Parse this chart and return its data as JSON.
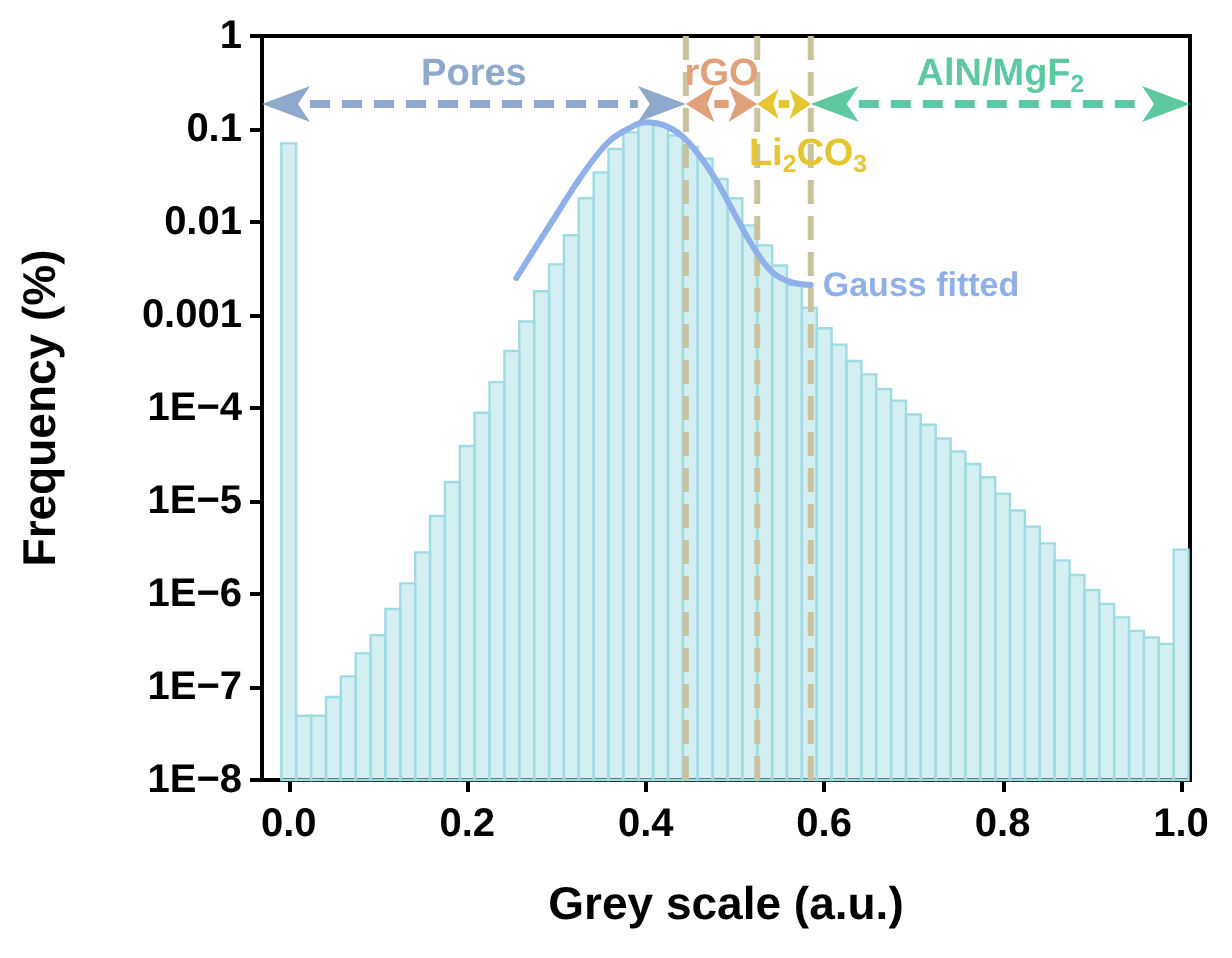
{
  "chart_data": {
    "type": "histogram",
    "xlabel": "Grey scale (a.u.)",
    "ylabel": "Frequency (%)",
    "xlim": [
      -0.03,
      1.01
    ],
    "xticks": [
      {
        "value": 0,
        "label": "0.0"
      },
      0.2,
      0.4,
      0.6,
      0.8,
      {
        "value": 1,
        "label": "1.0"
      }
    ],
    "ylim": [
      1e-08,
      1
    ],
    "yticks": [
      {
        "value": 1e-08,
        "label": "1E−8"
      },
      {
        "value": 1e-07,
        "label": "1E−7"
      },
      {
        "value": 1e-06,
        "label": "1E−6"
      },
      {
        "value": 1e-05,
        "label": "1E−5"
      },
      {
        "value": 0.0001,
        "label": "1E−4"
      },
      0.001,
      0.01,
      0.1,
      1
    ],
    "log": "y",
    "grid": false,
    "legend": false,
    "marker": "none",
    "series": [
      {
        "color": "#9fdbe3",
        "bins": [
          -0.0083,
          0.0083,
          0.025,
          0.0417,
          0.0583,
          0.075,
          0.0917,
          0.1083,
          0.125,
          0.1417,
          0.1583,
          0.175,
          0.1917,
          0.2083,
          0.225,
          0.2417,
          0.2583,
          0.275,
          0.2917,
          0.3083,
          0.325,
          0.3417,
          0.3583,
          0.375,
          0.3917,
          0.4083,
          0.425,
          0.4417,
          0.4583,
          0.475,
          0.4917,
          0.5083,
          0.525,
          0.5417,
          0.5583,
          0.575,
          0.5917,
          0.6083,
          0.625,
          0.6417,
          0.6583,
          0.675,
          0.6917,
          0.7083,
          0.725,
          0.7417,
          0.7583,
          0.775,
          0.7917,
          0.8083,
          0.825,
          0.8417,
          0.8583,
          0.875,
          0.8917,
          0.9083,
          0.925,
          0.9417,
          0.9583,
          0.975,
          0.9917,
          1.0083
        ],
        "values": [
          0.07,
          4.9e-08,
          4.9e-08,
          7.8e-08,
          1.3e-07,
          2.3e-07,
          3.6e-07,
          6.9e-07,
          1.3e-06,
          2.8e-06,
          6.9e-06,
          1.6e-05,
          3.9e-05,
          8.9e-05,
          0.00019,
          0.00041,
          0.00085,
          0.0018,
          0.0035,
          0.0072,
          0.018,
          0.034,
          0.061,
          0.092,
          0.118,
          0.11,
          0.085,
          0.064,
          0.048,
          0.029,
          0.018,
          0.0092,
          0.0056,
          0.0034,
          0.0021,
          0.0012,
          0.00072,
          0.00048,
          0.00032,
          0.00023,
          0.00016,
          0.00012,
          8.5e-05,
          6.6e-05,
          4.7e-05,
          3.4e-05,
          2.5e-05,
          1.8e-05,
          1.2e-05,
          7.9e-06,
          5.3e-06,
          3.5e-06,
          2.3e-06,
          1.6e-06,
          1.1e-06,
          7.8e-07,
          5.6e-07,
          4e-07,
          3.4e-07,
          2.9e-07,
          3e-06
        ]
      },
      {
        "type": "line",
        "name": "Gauss fitted",
        "color": "#8fb0e8",
        "x": [
          0.255,
          0.28,
          0.3,
          0.32,
          0.34,
          0.36,
          0.38,
          0.4,
          0.42,
          0.44,
          0.46,
          0.48,
          0.5,
          0.52,
          0.54,
          0.56,
          0.585
        ],
        "values": [
          0.0025,
          0.006,
          0.012,
          0.024,
          0.045,
          0.075,
          0.1,
          0.118,
          0.11,
          0.085,
          0.052,
          0.027,
          0.012,
          0.0055,
          0.003,
          0.0023,
          0.0021
        ]
      }
    ],
    "ref_lines": [
      {
        "axis": "x",
        "value": 0.445,
        "color": "#c9c29c",
        "line_style": "dashed"
      },
      {
        "axis": "x",
        "value": 0.525,
        "color": "#c9c29c",
        "line_style": "dashed"
      },
      {
        "axis": "x",
        "value": 0.585,
        "color": "#c9c29c",
        "line_style": "dashed"
      }
    ],
    "annotations": [
      "Pores",
      "rGO",
      "Li$_{2}$CO$_{3}$",
      "AlN/MgF$_{2}$"
    ]
  }
}
